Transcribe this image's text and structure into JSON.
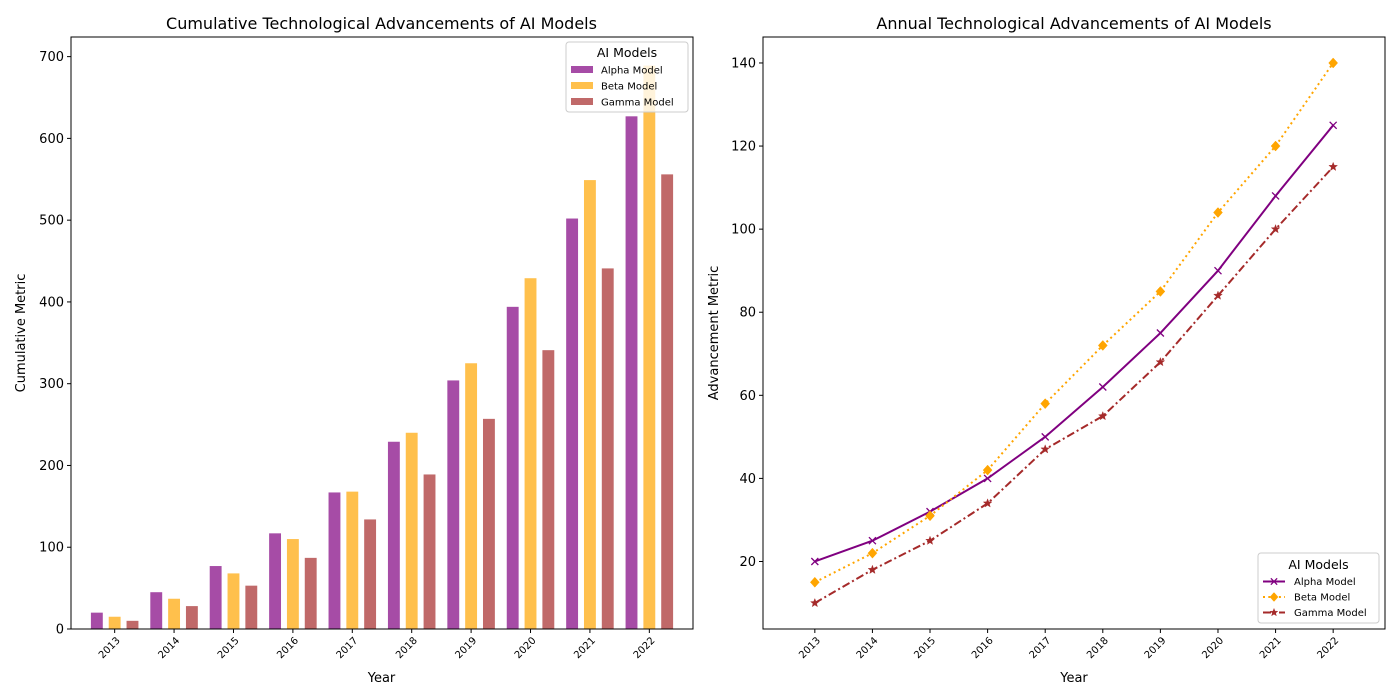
{
  "chart_data": [
    {
      "type": "bar",
      "title": "Cumulative Technological Advancements of AI Models",
      "xlabel": "Year",
      "ylabel": "Cumulative Metric",
      "categories": [
        "2013",
        "2014",
        "2015",
        "2016",
        "2017",
        "2018",
        "2019",
        "2020",
        "2021",
        "2022"
      ],
      "yticks": [
        0,
        100,
        200,
        300,
        400,
        500,
        600,
        700
      ],
      "ylim": [
        0,
        724
      ],
      "grid": false,
      "legend": {
        "title": "AI Models",
        "placement": "top-right"
      },
      "series": [
        {
          "name": "Alpha Model",
          "color": "#800080",
          "values": [
            20,
            45,
            77,
            117,
            167,
            229,
            304,
            394,
            502,
            627
          ]
        },
        {
          "name": "Beta Model",
          "color": "#FFA500",
          "values": [
            15,
            37,
            68,
            110,
            168,
            240,
            325,
            429,
            549,
            689
          ]
        },
        {
          "name": "Gamma Model",
          "color": "#A52A2A",
          "values": [
            10,
            28,
            53,
            87,
            134,
            189,
            257,
            341,
            441,
            556
          ]
        }
      ]
    },
    {
      "type": "line",
      "title": "Annual Technological Advancements of AI Models",
      "xlabel": "Year",
      "ylabel": "Advancement Metric",
      "x": [
        "2013",
        "2014",
        "2015",
        "2016",
        "2017",
        "2018",
        "2019",
        "2020",
        "2021",
        "2022"
      ],
      "yticks": [
        20,
        40,
        60,
        80,
        100,
        120,
        140
      ],
      "ylim": [
        3.75,
        146.25
      ],
      "grid": false,
      "legend": {
        "title": "AI Models",
        "placement": "bottom-right"
      },
      "series": [
        {
          "name": "Alpha Model",
          "color": "#800080",
          "linestyle": "solid",
          "marker": "x",
          "values": [
            20,
            25,
            32,
            40,
            50,
            62,
            75,
            90,
            108,
            125
          ]
        },
        {
          "name": "Beta Model",
          "color": "#FFA500",
          "linestyle": "dotted",
          "marker": "diamond",
          "values": [
            15,
            22,
            31,
            42,
            58,
            72,
            85,
            104,
            120,
            140
          ]
        },
        {
          "name": "Gamma Model",
          "color": "#A52A2A",
          "linestyle": "dashdot",
          "marker": "star",
          "values": [
            10,
            18,
            25,
            34,
            47,
            55,
            68,
            84,
            100,
            115
          ]
        }
      ]
    }
  ]
}
